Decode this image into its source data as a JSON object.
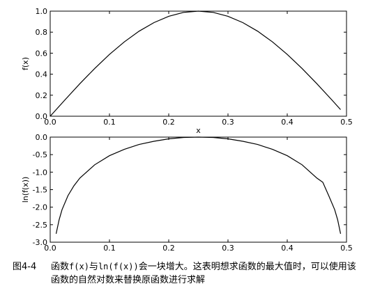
{
  "chart_data": [
    {
      "type": "line",
      "xlabel": "x",
      "ylabel": "f(x)",
      "xlim": [
        0.0,
        0.5
      ],
      "ylim": [
        0.0,
        1.0
      ],
      "x_ticks": [
        "0.0",
        "0.1",
        "0.2",
        "0.3",
        "0.4",
        "0.5"
      ],
      "y_ticks": [
        "0.0",
        "0.2",
        "0.4",
        "0.6",
        "0.8",
        "1.0"
      ],
      "grid": false,
      "series": [
        {
          "x": [
            0.0,
            0.025,
            0.05,
            0.075,
            0.1,
            0.125,
            0.15,
            0.175,
            0.2,
            0.225,
            0.25,
            0.275,
            0.3,
            0.325,
            0.35,
            0.375,
            0.4,
            0.425,
            0.45,
            0.475,
            0.49
          ],
          "values": [
            0.0,
            0.156,
            0.309,
            0.454,
            0.588,
            0.707,
            0.809,
            0.891,
            0.951,
            0.988,
            1.0,
            0.988,
            0.951,
            0.891,
            0.809,
            0.707,
            0.588,
            0.454,
            0.309,
            0.156,
            0.063
          ]
        }
      ]
    },
    {
      "type": "line",
      "xlabel": "",
      "ylabel": "ln(f(x))",
      "xlim": [
        0.0,
        0.5
      ],
      "ylim": [
        -3.0,
        0.0
      ],
      "x_ticks": [
        "0.0",
        "0.1",
        "0.2",
        "0.3",
        "0.4",
        "0.5"
      ],
      "y_ticks": [
        "0.0",
        "-0.5",
        "-1.0",
        "-1.5",
        "-2.0",
        "-2.5",
        "-3.0"
      ],
      "grid": false,
      "series": [
        {
          "x": [
            0.01,
            0.015,
            0.02,
            0.03,
            0.04,
            0.05,
            0.075,
            0.1,
            0.125,
            0.15,
            0.175,
            0.2,
            0.225,
            0.25,
            0.275,
            0.3,
            0.325,
            0.35,
            0.375,
            0.4,
            0.425,
            0.45,
            0.46,
            0.47,
            0.48,
            0.485,
            0.49
          ],
          "values": [
            -2.76,
            -2.36,
            -2.07,
            -1.67,
            -1.39,
            -1.17,
            -0.79,
            -0.53,
            -0.35,
            -0.21,
            -0.12,
            -0.05,
            -0.01,
            0.0,
            -0.01,
            -0.05,
            -0.12,
            -0.21,
            -0.35,
            -0.53,
            -0.79,
            -1.17,
            -1.29,
            -1.67,
            -2.07,
            -2.36,
            -2.76
          ]
        }
      ]
    }
  ],
  "caption": {
    "fig_number": "图4-4",
    "line1_parts": [
      "函数",
      "f(x)",
      "与",
      "ln(f(x))",
      "会一块增大。这表明想求函数的最大值时，可以使用该"
    ],
    "line2": "函数的自然对数来替换原函数进行求解"
  }
}
